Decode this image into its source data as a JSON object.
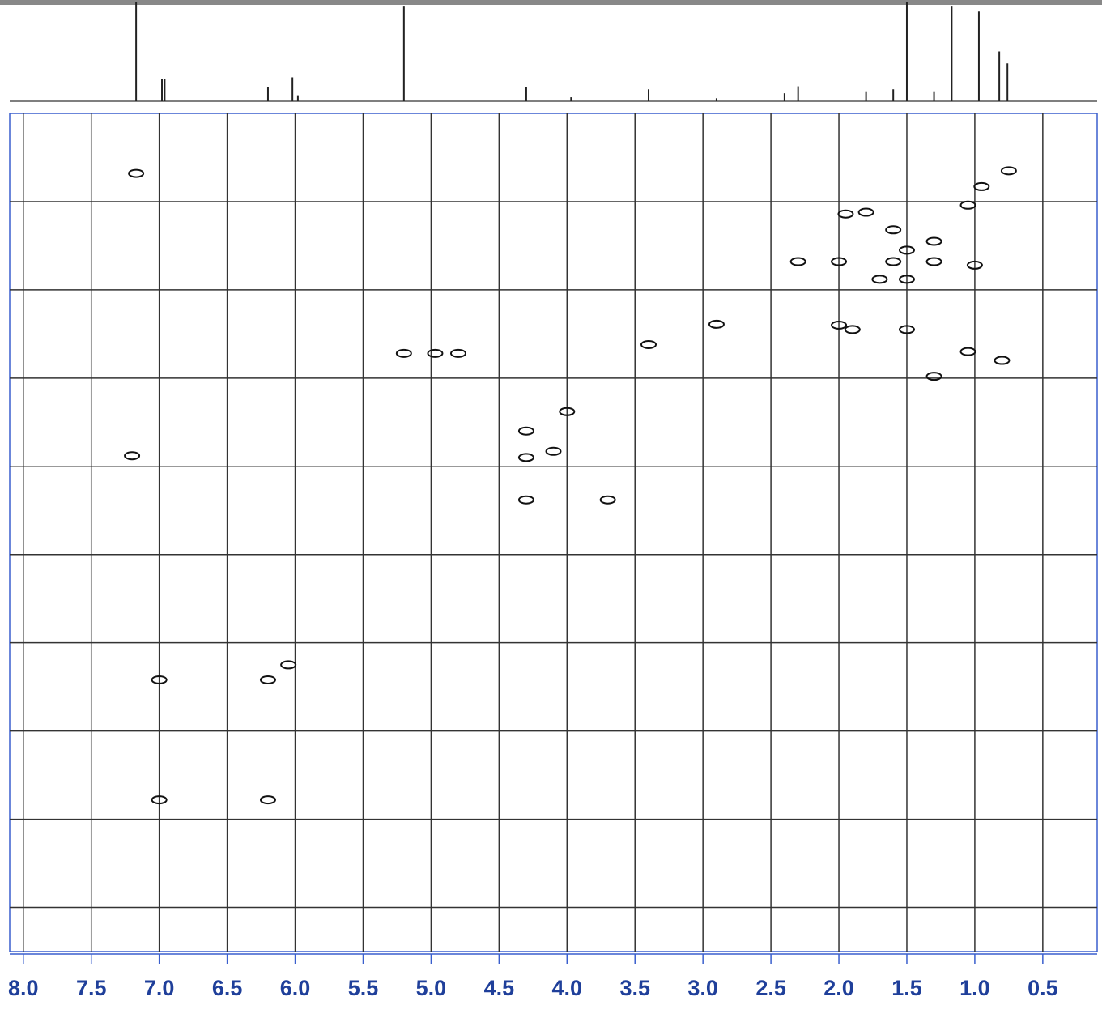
{
  "chart_data": [
    {
      "type": "stick",
      "x": [
        7.17,
        6.98,
        6.96,
        6.2,
        6.02,
        5.98,
        5.2,
        4.3,
        3.97,
        3.4,
        2.9,
        2.4,
        2.3,
        1.8,
        1.6,
        1.5,
        1.3,
        1.17,
        0.97,
        0.82,
        0.76
      ],
      "values": [
        100,
        22,
        22,
        14,
        24,
        6,
        95,
        14,
        4,
        12,
        3,
        8,
        15,
        10,
        12,
        100,
        10,
        95,
        90,
        50,
        38
      ],
      "xlim": [
        8.1,
        0.1
      ],
      "ylim": [
        0,
        100
      ],
      "color": "#222222"
    },
    {
      "type": "scatter",
      "x": [
        7.17,
        7.2,
        5.2,
        4.97,
        4.8,
        3.4,
        2.9,
        4.3,
        4.3,
        4.1,
        4.0,
        4.3,
        3.7,
        6.05,
        6.2,
        7.0,
        7.0,
        6.2,
        0.95,
        0.75,
        1.05,
        1.95,
        1.8,
        2.3,
        2.0,
        1.6,
        1.5,
        1.7,
        1.5,
        1.3,
        1.0,
        1.3,
        1.6,
        2.0,
        1.9,
        1.5,
        1.05,
        0.8,
        1.3
      ],
      "values": [
        0.68,
        3.88,
        2.72,
        2.72,
        2.72,
        2.62,
        2.39,
        3.6,
        3.9,
        3.83,
        3.38,
        4.38,
        4.38,
        6.25,
        6.42,
        6.42,
        7.78,
        7.78,
        0.83,
        0.65,
        1.04,
        1.14,
        1.12,
        1.68,
        1.68,
        1.68,
        1.55,
        1.88,
        1.88,
        1.68,
        1.72,
        1.45,
        1.32,
        2.4,
        2.45,
        2.45,
        2.7,
        2.8,
        2.98
      ],
      "xlim": [
        8.1,
        0.1
      ],
      "ylim": [
        0,
        9.5
      ],
      "xticks": [
        {
          "value": 8,
          "label": "8.0"
        },
        {
          "value": 7.5,
          "label": "7.5"
        },
        {
          "value": 7,
          "label": "7.0"
        },
        {
          "value": 6.5,
          "label": "6.5"
        },
        {
          "value": 6,
          "label": "6.0"
        },
        {
          "value": 5.5,
          "label": "5.5"
        },
        {
          "value": 5,
          "label": "5.0"
        },
        {
          "value": 4.5,
          "label": "4.5"
        },
        {
          "value": 4,
          "label": "4.0"
        },
        {
          "value": 3.5,
          "label": "3.5"
        },
        {
          "value": 3,
          "label": "3.0"
        },
        {
          "value": 2.5,
          "label": "2.5"
        },
        {
          "value": 2,
          "label": "2.0"
        },
        {
          "value": 1.5,
          "label": "1.5"
        },
        {
          "value": 1,
          "label": "1.0"
        },
        {
          "value": 0.5,
          "label": "0.5"
        }
      ],
      "yticks": [
        1,
        2,
        3,
        4,
        5,
        6,
        7,
        8,
        9
      ],
      "grid": true,
      "color": "#111111"
    }
  ]
}
